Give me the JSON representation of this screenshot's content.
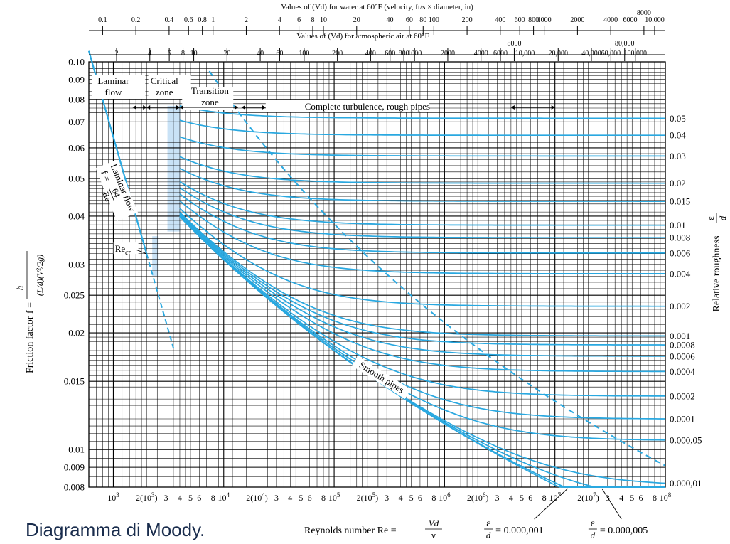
{
  "caption": "Diagramma di Moody.",
  "chart_data": {
    "type": "line",
    "title": "",
    "top_scale_water": {
      "label": "Values of (Vd) for water at 60°F (velocity, ft/s × diameter, in)",
      "ticks": [
        {
          "v": 0.1,
          "label": "0.1",
          "re": 800
        },
        {
          "v": 0.2,
          "label": "0.2",
          "re": 1600
        },
        {
          "v": 0.4,
          "label": "0.4",
          "re": 3200
        },
        {
          "v": 0.6,
          "label": "0.6",
          "re": 4800
        },
        {
          "v": 0.8,
          "label": "0.8",
          "re": 6400
        },
        {
          "v": 1,
          "label": "1",
          "re": 8000
        },
        {
          "v": 2,
          "label": "2",
          "re": 16000
        },
        {
          "v": 4,
          "label": "4",
          "re": 32000
        },
        {
          "v": 6,
          "label": "6",
          "re": 48000
        },
        {
          "v": 8,
          "label": "8",
          "re": 64000
        },
        {
          "v": 10,
          "label": "10",
          "re": 80000
        },
        {
          "v": 20,
          "label": "20",
          "re": 160000
        },
        {
          "v": 40,
          "label": "40",
          "re": 320000
        },
        {
          "v": 60,
          "label": "60",
          "re": 480000
        },
        {
          "v": 80,
          "label": "80",
          "re": 640000
        },
        {
          "v": 100,
          "label": "100",
          "re": 800000
        },
        {
          "v": 200,
          "label": "200",
          "re": 1600000
        },
        {
          "v": 400,
          "label": "400",
          "re": 3200000
        },
        {
          "v": 600,
          "label": "600",
          "re": 4800000
        },
        {
          "v": 800,
          "label": "800",
          "re": 6400000
        },
        {
          "v": 1000,
          "label": "1000",
          "re": 8000000
        },
        {
          "v": 2000,
          "label": "2000",
          "re": 16000000
        },
        {
          "v": 4000,
          "label": "4000",
          "re": 32000000
        },
        {
          "v": 6000,
          "label": "6000",
          "re": 48000000
        },
        {
          "v": 8000,
          "label": "8000",
          "re": 64000000
        },
        {
          "v": 10000,
          "label": "10,000",
          "re": 80000000
        }
      ]
    },
    "top_scale_air": {
      "label": "Values of (Vd) for atmospheric air at 60°F",
      "ticks": [
        {
          "v": 2,
          "label": "2",
          "re": 1070
        },
        {
          "v": 4,
          "label": "4",
          "re": 2140
        },
        {
          "v": 6,
          "label": "6",
          "re": 3210
        },
        {
          "v": 8,
          "label": "8",
          "re": 4280
        },
        {
          "v": 10,
          "label": "10",
          "re": 5350
        },
        {
          "v": 20,
          "label": "20",
          "re": 10700
        },
        {
          "v": 40,
          "label": "40",
          "re": 21400
        },
        {
          "v": 60,
          "label": "60",
          "re": 32100
        },
        {
          "v": 100,
          "label": "100",
          "re": 53500
        },
        {
          "v": 200,
          "label": "200",
          "re": 107000
        },
        {
          "v": 400,
          "label": "400",
          "re": 214000
        },
        {
          "v": 600,
          "label": "600",
          "re": 321000
        },
        {
          "v": 800,
          "label": "800",
          "re": 428000
        },
        {
          "v": 1000,
          "label": "1000",
          "re": 535000
        },
        {
          "v": 2000,
          "label": "2000",
          "re": 1070000
        },
        {
          "v": 4000,
          "label": "4000",
          "re": 2140000
        },
        {
          "v": 6000,
          "label": "6000",
          "re": 3210000
        },
        {
          "v": 8000,
          "label": "8000",
          "re": 4280000
        },
        {
          "v": 10000,
          "label": "10,000",
          "re": 5350000
        },
        {
          "v": 20000,
          "label": "20,000",
          "re": 10700000
        },
        {
          "v": 40000,
          "label": "40,000",
          "re": 21400000
        },
        {
          "v": 60000,
          "label": "60,000",
          "re": 32100000
        },
        {
          "v": 80000,
          "label": "80,000",
          "re": 42800000
        },
        {
          "v": 100000,
          "label": "100,000",
          "re": 53500000
        }
      ]
    },
    "x_axis": {
      "label_text": "Reynolds number Re =",
      "frac_num": "Vd",
      "frac_den": "ν",
      "scale": "log",
      "range": [
        600,
        100000000
      ],
      "tick_labels": [
        {
          "v": 1000,
          "label": "10",
          "sup": "3"
        },
        {
          "v": 2000,
          "label": "2(10",
          "sup": "3",
          "suffix": ")"
        },
        {
          "v": 3000,
          "label": "3"
        },
        {
          "v": 4000,
          "label": "4"
        },
        {
          "v": 5000,
          "label": "5"
        },
        {
          "v": 6000,
          "label": "6"
        },
        {
          "v": 8000,
          "label": "8"
        },
        {
          "v": 10000,
          "label": "10",
          "sup": "4"
        },
        {
          "v": 20000,
          "label": "2(10",
          "sup": "4",
          "suffix": ")"
        },
        {
          "v": 30000,
          "label": "3"
        },
        {
          "v": 40000,
          "label": "4"
        },
        {
          "v": 50000,
          "label": "5"
        },
        {
          "v": 60000,
          "label": "6"
        },
        {
          "v": 80000,
          "label": "8"
        },
        {
          "v": 100000,
          "label": "10",
          "sup": "5"
        },
        {
          "v": 200000,
          "label": "2(10",
          "sup": "5",
          "suffix": ")"
        },
        {
          "v": 300000,
          "label": "3"
        },
        {
          "v": 400000,
          "label": "4"
        },
        {
          "v": 500000,
          "label": "5"
        },
        {
          "v": 600000,
          "label": "6"
        },
        {
          "v": 800000,
          "label": "8"
        },
        {
          "v": 1000000,
          "label": "10",
          "sup": "6"
        },
        {
          "v": 2000000,
          "label": "2(10",
          "sup": "6",
          "suffix": ")"
        },
        {
          "v": 3000000,
          "label": "3"
        },
        {
          "v": 4000000,
          "label": "4"
        },
        {
          "v": 5000000,
          "label": "5"
        },
        {
          "v": 6000000,
          "label": "6"
        },
        {
          "v": 8000000,
          "label": "8"
        },
        {
          "v": 10000000,
          "label": "10",
          "sup": "7"
        },
        {
          "v": 20000000,
          "label": "2(10",
          "sup": "7",
          "suffix": ")"
        },
        {
          "v": 30000000,
          "label": "3"
        },
        {
          "v": 40000000,
          "label": "4"
        },
        {
          "v": 50000000,
          "label": "5"
        },
        {
          "v": 60000000,
          "label": "6"
        },
        {
          "v": 80000000,
          "label": "8"
        },
        {
          "v": 100000000,
          "label": "10",
          "sup": "8"
        }
      ]
    },
    "y_axis": {
      "label": "Friction factor f =",
      "formula": "h / ((L/d)(V²/2g))",
      "scale": "log",
      "range": [
        0.008,
        0.1
      ],
      "tick_labels": [
        "0.10",
        "0.09",
        "0.08",
        "0.07",
        "0.06",
        "0.05",
        "0.04",
        "0.03",
        "0.025",
        "0.02",
        "0.015",
        "0.01",
        "0.009",
        "0.008"
      ],
      "tick_values": [
        0.1,
        0.09,
        0.08,
        0.07,
        0.06,
        0.05,
        0.04,
        0.03,
        0.025,
        0.02,
        0.015,
        0.01,
        0.009,
        0.008
      ]
    },
    "right_axis": {
      "label": "Relative roughness",
      "frac_num": "ε",
      "frac_den": "d"
    },
    "grid": true,
    "regions": [
      {
        "label": "Laminar",
        "label2": "flow",
        "re_min": 600,
        "re_max": 2000
      },
      {
        "label": "Critical",
        "label2": "zone",
        "re_min": 2000,
        "re_max": 4000
      },
      {
        "label": "Transition",
        "label2": "zone",
        "re_min": 4000,
        "re_max": 14000
      },
      {
        "label": "Complete turbulence, rough pipes",
        "re_min": 14000,
        "re_max": 10000000
      }
    ],
    "laminar": {
      "formula_label": "Laminar flow",
      "formula": "f = 64/Re",
      "f_num": "64",
      "f_den": "Re",
      "re_cr_label": "Re",
      "re_cr_sub": "cr",
      "re_cr": 2000
    },
    "smooth_label": "Smooth pipes",
    "series": [
      {
        "name": "0.05",
        "roughness": 0.05
      },
      {
        "name": "0.04",
        "roughness": 0.04
      },
      {
        "name": "0.03",
        "roughness": 0.03
      },
      {
        "name": "0.02",
        "roughness": 0.02
      },
      {
        "name": "0.015",
        "roughness": 0.015
      },
      {
        "name": "0.01",
        "roughness": 0.01
      },
      {
        "name": "0.008",
        "roughness": 0.008
      },
      {
        "name": "0.006",
        "roughness": 0.006
      },
      {
        "name": "0.004",
        "roughness": 0.004
      },
      {
        "name": "0.002",
        "roughness": 0.002
      },
      {
        "name": "0.001",
        "roughness": 0.001
      },
      {
        "name": "0.0008",
        "roughness": 0.0008
      },
      {
        "name": "0.0006",
        "roughness": 0.0006
      },
      {
        "name": "0.0004",
        "roughness": 0.0004
      },
      {
        "name": "0.0002",
        "roughness": 0.0002
      },
      {
        "name": "0.0001",
        "roughness": 0.0001
      },
      {
        "name": "0.000,05",
        "roughness": 5e-05
      },
      {
        "name": "0.000,01",
        "roughness": 1e-05
      }
    ],
    "extra_curves": [
      {
        "label_pre": "ε",
        "label_den": "d",
        "label_post": "= 0.000,001",
        "roughness": 1e-06
      },
      {
        "label_pre": "ε",
        "label_den": "d",
        "label_post": "= 0.000,005",
        "roughness": 5e-06
      }
    ],
    "colors": {
      "curve": "#29a8e0",
      "grid": "#000000",
      "shade": "#c9e2f6",
      "caption": "#1a2d4d"
    }
  }
}
